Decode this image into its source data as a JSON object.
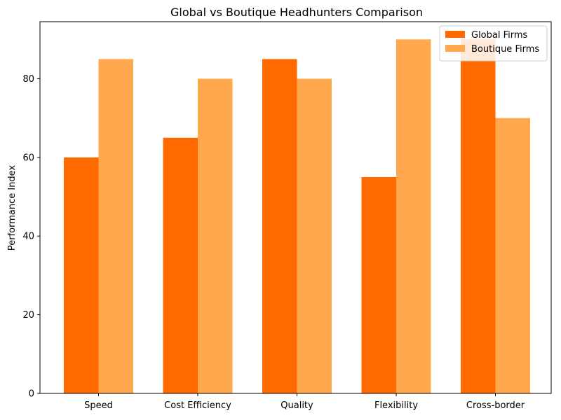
{
  "chart_data": {
    "type": "bar",
    "title": "Global vs Boutique Headhunters Comparison",
    "xlabel": "",
    "ylabel": "Performance Index",
    "categories": [
      "Speed",
      "Cost Efficiency",
      "Quality",
      "Flexibility",
      "Cross-border"
    ],
    "series": [
      {
        "name": "Global Firms",
        "color": "#ff6a00",
        "values": [
          60,
          65,
          85,
          55,
          90
        ]
      },
      {
        "name": "Boutique Firms",
        "color": "#ffa84d",
        "values": [
          85,
          80,
          80,
          90,
          70
        ]
      }
    ],
    "ylim": [
      0,
      94.5
    ],
    "yticks": [
      0,
      20,
      40,
      60,
      80
    ],
    "grid": false,
    "legend_position": "top-right"
  }
}
